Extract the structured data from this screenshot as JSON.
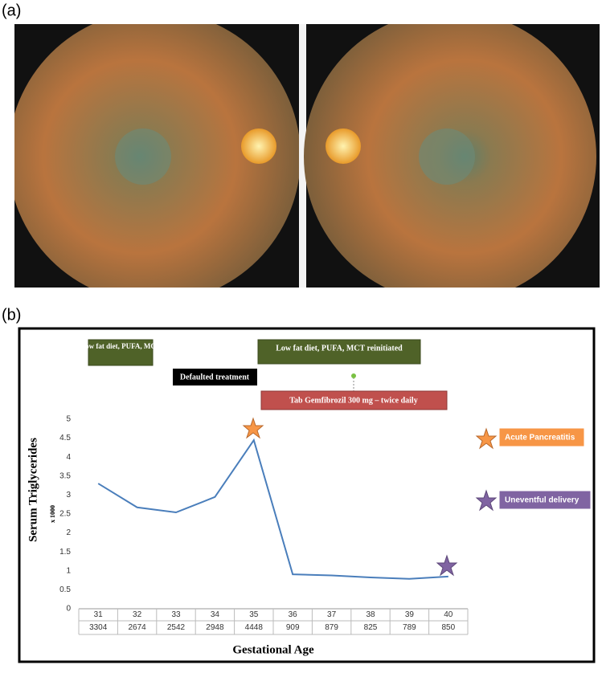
{
  "panel_labels": [
    "(a)",
    "(b)"
  ],
  "chart_data": {
    "type": "line",
    "y_label": "Serum Triglycerides",
    "y_unit_label": "x 1000",
    "x_label": "Gestational Age",
    "categories": [
      "31",
      "32",
      "33",
      "34",
      "35",
      "36",
      "37",
      "38",
      "39",
      "40"
    ],
    "series": [
      {
        "name": "Serum Triglycerides",
        "color": "#4a7ebb",
        "values": [
          3.304,
          2.674,
          2.542,
          2.948,
          4.448,
          0.909,
          0.879,
          0.825,
          0.789,
          0.85
        ],
        "value_labels": [
          "3304",
          "2674",
          "2542",
          "2948",
          "4448",
          "909",
          "879",
          "825",
          "789",
          "850"
        ]
      }
    ],
    "ylim": [
      0,
      5
    ],
    "yticks": [
      0,
      0.5,
      1,
      1.5,
      2,
      2.5,
      3,
      3.5,
      4,
      4.5,
      5
    ],
    "annotations": [
      "Low fat diet, PUFA, MCT",
      "Defaulted treatment",
      "Low fat diet, PUFA, MCT reinitiated",
      "Tab Gemfibrozil 300 mg – twice daily"
    ],
    "legend": [
      {
        "name": "Acute Pancreatitis",
        "color": "#f79646"
      },
      {
        "name": "Uneventful delivery",
        "color": "#8064a2"
      }
    ]
  }
}
